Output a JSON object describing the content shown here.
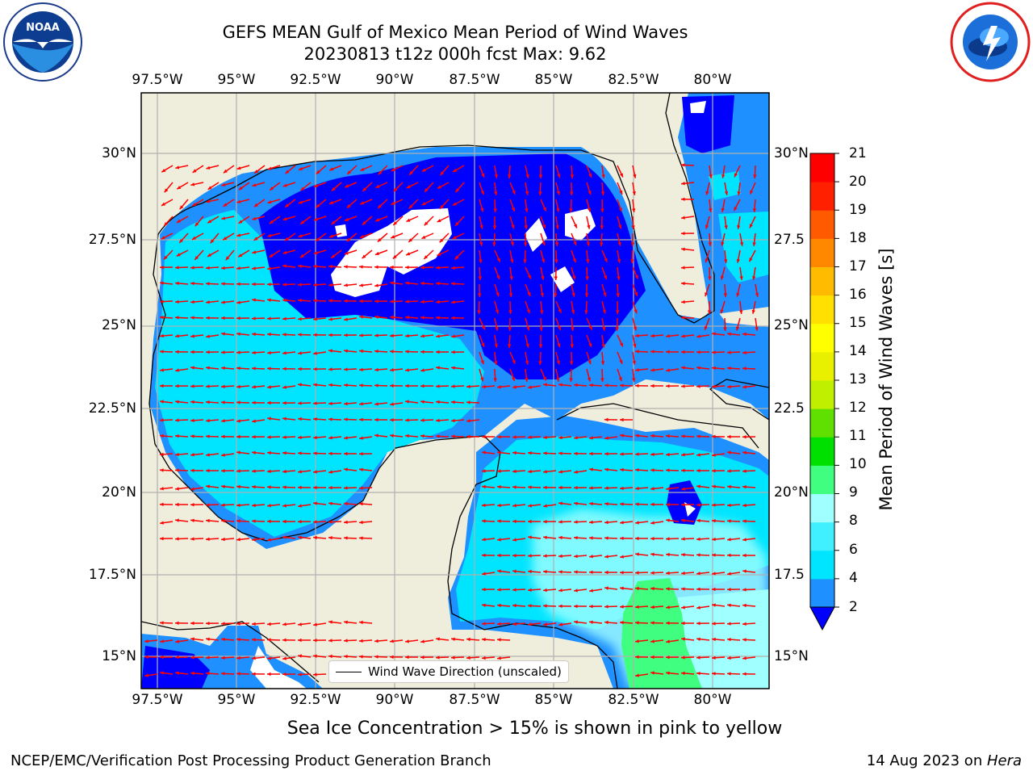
{
  "title_line1": "GEFS MEAN Gulf of Mexico Mean Period of Wind Waves",
  "title_line2": "20230813 t12z 000h fcst   Max: 9.62",
  "lon_labels": [
    "97.5°W",
    "95°W",
    "92.5°W",
    "90°W",
    "87.5°W",
    "85°W",
    "82.5°W",
    "80°W"
  ],
  "lat_labels": [
    "30°N",
    "27.5°N",
    "25°N",
    "22.5°N",
    "20°N",
    "17.5°N",
    "15°N"
  ],
  "lat_labels_right": [
    "30°N",
    "27.5",
    "25°N",
    "22.5",
    "20°N",
    "17.5",
    "15°N"
  ],
  "colorbar": {
    "label": "Mean Period of Wind Waves [s]",
    "ticks": [
      "2",
      "4",
      "6",
      "8",
      "9",
      "10",
      "11",
      "12",
      "13",
      "14",
      "15",
      "16",
      "17",
      "18",
      "19",
      "20",
      "21"
    ],
    "colors": [
      "#0000ff",
      "#1e90ff",
      "#00e5ff",
      "#40f0ff",
      "#a0ffff",
      "#40ff80",
      "#00e000",
      "#60e000",
      "#c0f000",
      "#e8f000",
      "#ffff00",
      "#ffe000",
      "#ffbb00",
      "#ff8800",
      "#ff5a00",
      "#ff2000",
      "#ff0000"
    ]
  },
  "legend_label": "Wind Wave Direction (unscaled)",
  "subtitle": "Sea Ice Concentration > 15% is shown in pink to yellow",
  "footer_left": "NCEP/EMC/Verification Post Processing Product Generation Branch",
  "footer_date": "14 Aug 2023 on ",
  "footer_machine": "Hera",
  "logos": {
    "left": "noaa-logo",
    "right": "national-weather-service-logo"
  },
  "colors": {
    "land": "#efeedd",
    "arrow": "#ff0000",
    "grid": "#b0b0b0"
  }
}
